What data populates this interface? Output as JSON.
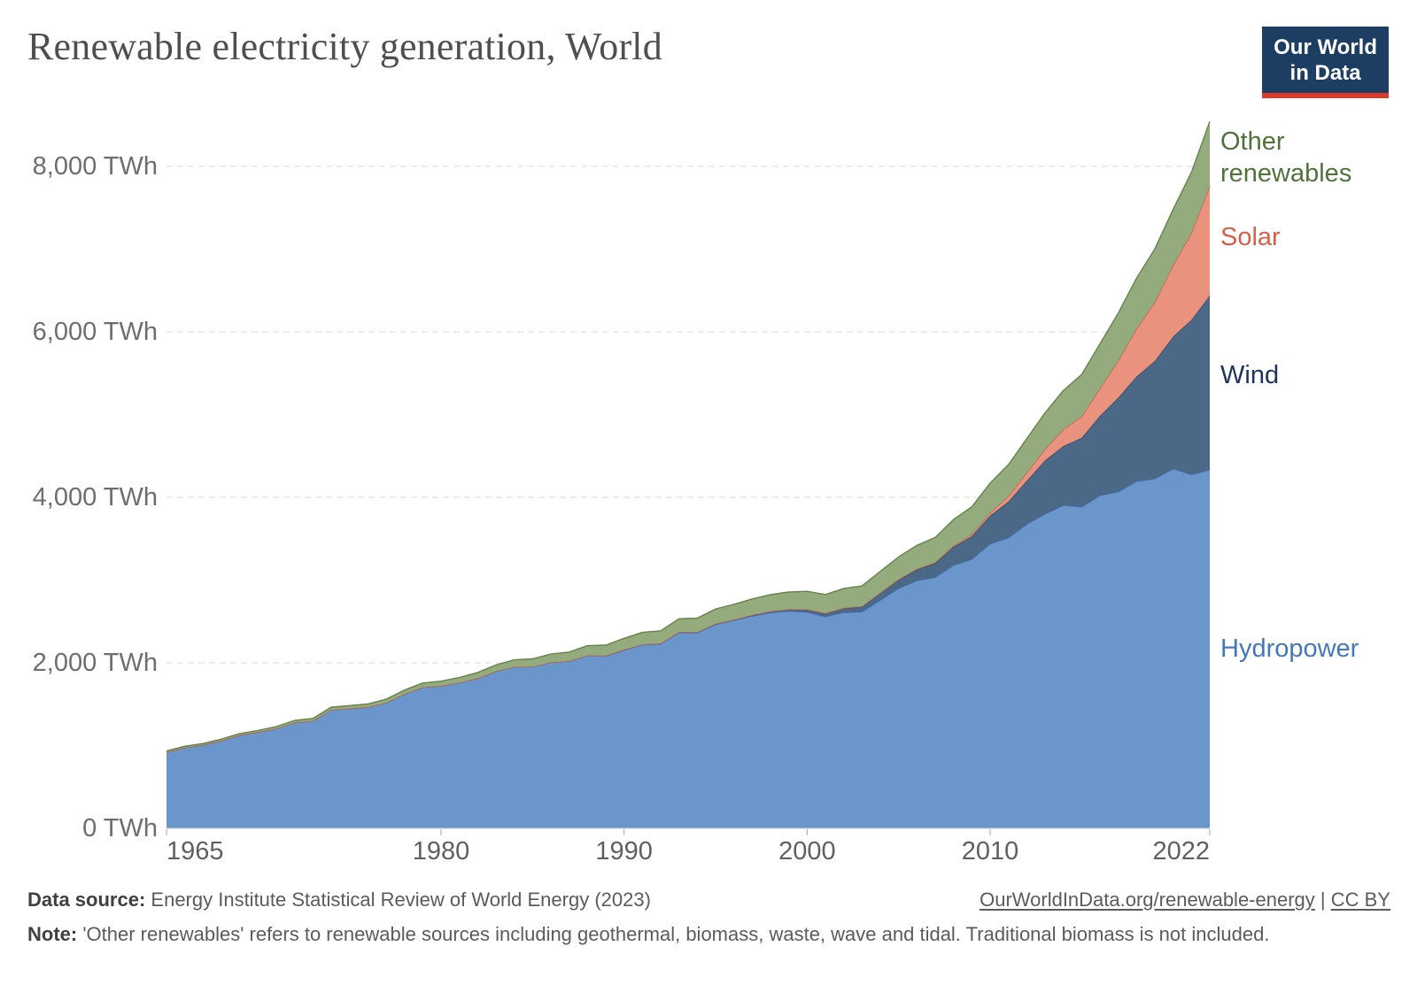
{
  "header": {
    "title": "Renewable electricity generation, World",
    "logo": {
      "line1": "Our World",
      "line2": "in Data",
      "bg_color": "#1d3d63",
      "underline_color": "#dc3a2c"
    }
  },
  "footer": {
    "source_label": "Data source:",
    "source_text": "Energy Institute Statistical Review of World Energy (2023)",
    "link_url": "OurWorldInData.org/renewable-energy",
    "separator": "|",
    "license": "CC BY",
    "note_label": "Note:",
    "note_text": "'Other renewables' refers to renewable sources including geothermal, biomass, waste, wave and tidal. Traditional biomass is not included."
  },
  "chart_data": {
    "type": "area",
    "stacked": true,
    "title": "Renewable electricity generation, World",
    "unit": "TWh",
    "grid": "dashed-horizontal",
    "legend_position": "right-inline",
    "ylim": [
      0,
      8600
    ],
    "y_ticks": [
      {
        "value": 0,
        "label": "0 TWh"
      },
      {
        "value": 2000,
        "label": "2,000 TWh"
      },
      {
        "value": 4000,
        "label": "4,000 TWh"
      },
      {
        "value": 6000,
        "label": "6,000 TWh"
      },
      {
        "value": 8000,
        "label": "8,000 TWh"
      }
    ],
    "x_ticks": [
      1965,
      1980,
      1990,
      2000,
      2010,
      2022
    ],
    "years": [
      1965,
      1966,
      1967,
      1968,
      1969,
      1970,
      1971,
      1972,
      1973,
      1974,
      1975,
      1976,
      1977,
      1978,
      1979,
      1980,
      1981,
      1982,
      1983,
      1984,
      1985,
      1986,
      1987,
      1988,
      1989,
      1990,
      1991,
      1992,
      1993,
      1994,
      1995,
      1996,
      1997,
      1998,
      1999,
      2000,
      2001,
      2002,
      2003,
      2004,
      2005,
      2006,
      2007,
      2008,
      2009,
      2010,
      2011,
      2012,
      2013,
      2014,
      2015,
      2016,
      2017,
      2018,
      2019,
      2020,
      2021,
      2022
    ],
    "series": [
      {
        "id": "hydropower",
        "name": "Hydropower",
        "fill": "#6b96cb",
        "stroke": "#3f6cae",
        "label_color": "#4477bb",
        "values": [
          920,
          977,
          1008,
          1060,
          1125,
          1161,
          1206,
          1278,
          1299,
          1432,
          1448,
          1465,
          1518,
          1625,
          1705,
          1723,
          1762,
          1814,
          1898,
          1952,
          1955,
          2006,
          2022,
          2090,
          2085,
          2156,
          2220,
          2230,
          2367,
          2365,
          2465,
          2513,
          2567,
          2608,
          2627,
          2614,
          2560,
          2610,
          2617,
          2759,
          2901,
          2995,
          3035,
          3181,
          3253,
          3438,
          3512,
          3675,
          3801,
          3907,
          3887,
          4024,
          4068,
          4195,
          4225,
          4347,
          4277,
          4334
        ]
      },
      {
        "id": "wind",
        "name": "Wind",
        "fill": "#4b6987",
        "stroke": "#2e4a68",
        "label_color": "#1f3360",
        "values": [
          0,
          0,
          0,
          0,
          0,
          0,
          0,
          0,
          0,
          0,
          0,
          0,
          0,
          0,
          0,
          0,
          0,
          0,
          0,
          0,
          0,
          0,
          0,
          1,
          3,
          4,
          4,
          5,
          6,
          7,
          8,
          9,
          12,
          16,
          21,
          31,
          38,
          52,
          63,
          85,
          104,
          133,
          171,
          221,
          276,
          342,
          437,
          524,
          646,
          713,
          832,
          960,
          1136,
          1265,
          1423,
          1596,
          1867,
          2105
        ]
      },
      {
        "id": "solar",
        "name": "Solar",
        "fill": "#e9937f",
        "stroke": "#c75f4b",
        "label_color": "#d4604a",
        "values": [
          0,
          0,
          0,
          0,
          0,
          0,
          0,
          0,
          0,
          0,
          0,
          0,
          0,
          0,
          0,
          0,
          0,
          0,
          0,
          0,
          0,
          0,
          0,
          0,
          0,
          0,
          0,
          0,
          0,
          0,
          0,
          0,
          0,
          0,
          0,
          1,
          2,
          2,
          3,
          4,
          5,
          7,
          9,
          14,
          22,
          34,
          65,
          100,
          136,
          202,
          260,
          332,
          450,
          580,
          711,
          861,
          1055,
          1322
        ]
      },
      {
        "id": "other-renewables",
        "name": "Other renewables",
        "fill": "#93ab7d",
        "stroke": "#66834a",
        "label_color": "#51713c",
        "values": [
          15,
          16,
          17,
          18,
          20,
          22,
          24,
          26,
          29,
          32,
          35,
          38,
          42,
          46,
          51,
          56,
          62,
          69,
          76,
          84,
          93,
          100,
          108,
          117,
          126,
          136,
          144,
          152,
          160,
          168,
          177,
          185,
          193,
          201,
          209,
          218,
          226,
          236,
          246,
          257,
          270,
          284,
          299,
          316,
          335,
          357,
          382,
          409,
          438,
          470,
          504,
          539,
          574,
          609,
          644,
          678,
          729,
          782
        ]
      }
    ]
  }
}
